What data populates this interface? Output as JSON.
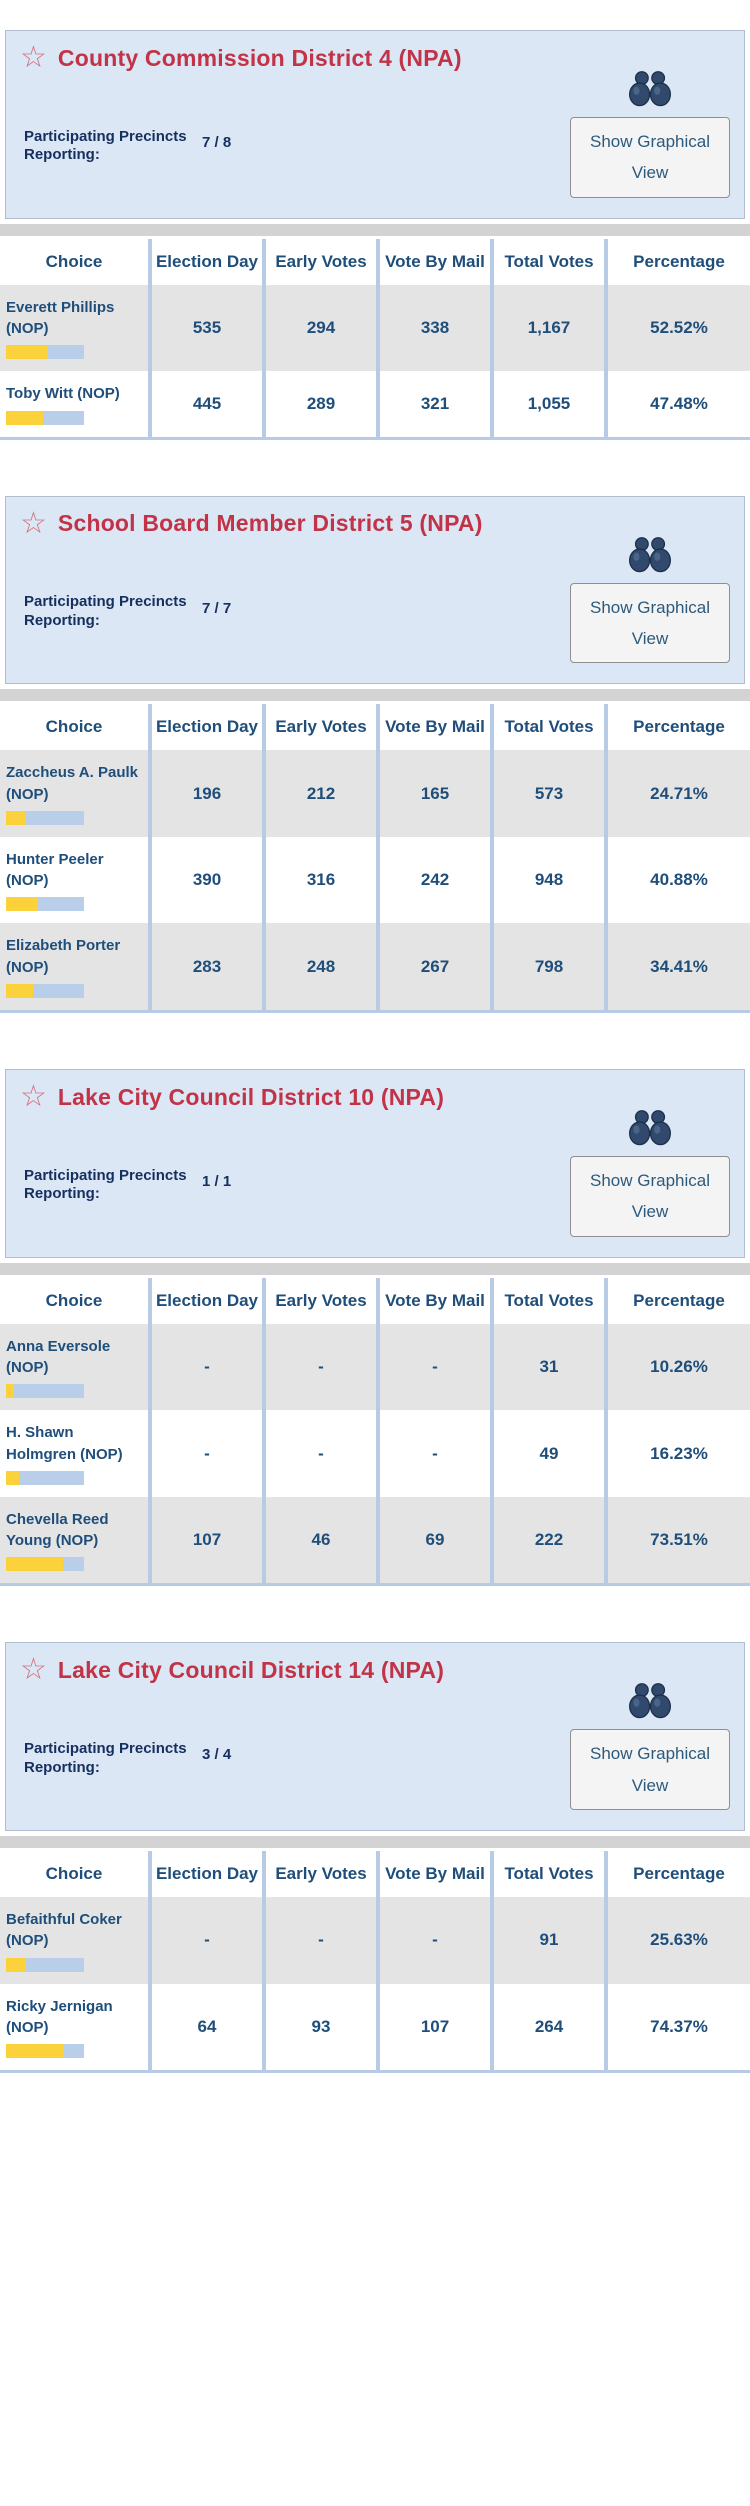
{
  "shared": {
    "precincts_label": "Participating Precincts Reporting:",
    "graphical_view_button": "Show Graphical View",
    "star_icon": "☆",
    "table_headers": [
      "Choice",
      "Election Day",
      "Early Votes",
      "Vote By Mail",
      "Total Votes",
      "Percentage"
    ]
  },
  "colors": {
    "panel_bg": "#dce7f5",
    "panel_border": "#b2bdd0",
    "title_red": "#c23347",
    "star_red": "#d2707e",
    "navy": "#1f4e7a",
    "dark_navy": "#152f5e",
    "strip_gray": "#d3d3d3",
    "row_gray": "#e4e4e4",
    "col_border": "#b7cce4",
    "bar_yellow": "#fbd23c",
    "bar_blue": "#b9cfe9",
    "button_text": "#2c5a7c"
  },
  "contests": [
    {
      "title": "County Commission District 4 (NPA)",
      "precincts_reporting": "7 / 8",
      "rows": [
        {
          "choice": "Everett Phillips (NOP)",
          "election_day": "535",
          "early_votes": "294",
          "vote_by_mail": "338",
          "total_votes": "1,167",
          "percentage": "52.52%",
          "pct": 52.52
        },
        {
          "choice": "Toby Witt (NOP)",
          "election_day": "445",
          "early_votes": "289",
          "vote_by_mail": "321",
          "total_votes": "1,055",
          "percentage": "47.48%",
          "pct": 47.48
        }
      ]
    },
    {
      "title": "School Board Member District 5 (NPA)",
      "precincts_reporting": "7 / 7",
      "rows": [
        {
          "choice": "Zaccheus A. Paulk (NOP)",
          "election_day": "196",
          "early_votes": "212",
          "vote_by_mail": "165",
          "total_votes": "573",
          "percentage": "24.71%",
          "pct": 24.71
        },
        {
          "choice": "Hunter Peeler (NOP)",
          "election_day": "390",
          "early_votes": "316",
          "vote_by_mail": "242",
          "total_votes": "948",
          "percentage": "40.88%",
          "pct": 40.88
        },
        {
          "choice": "Elizabeth Porter (NOP)",
          "election_day": "283",
          "early_votes": "248",
          "vote_by_mail": "267",
          "total_votes": "798",
          "percentage": "34.41%",
          "pct": 34.41
        }
      ]
    },
    {
      "title": "Lake City Council District 10 (NPA)",
      "precincts_reporting": "1 / 1",
      "rows": [
        {
          "choice": "Anna Eversole (NOP)",
          "election_day": "-",
          "early_votes": "-",
          "vote_by_mail": "-",
          "total_votes": "31",
          "percentage": "10.26%",
          "pct": 10.26
        },
        {
          "choice": "H. Shawn Holmgren (NOP)",
          "election_day": "-",
          "early_votes": "-",
          "vote_by_mail": "-",
          "total_votes": "49",
          "percentage": "16.23%",
          "pct": 16.23
        },
        {
          "choice": "Chevella Reed Young (NOP)",
          "election_day": "107",
          "early_votes": "46",
          "vote_by_mail": "69",
          "total_votes": "222",
          "percentage": "73.51%",
          "pct": 73.51
        }
      ]
    },
    {
      "title": "Lake City Council District 14 (NPA)",
      "precincts_reporting": "3 / 4",
      "rows": [
        {
          "choice": "Befaithful Coker (NOP)",
          "election_day": "-",
          "early_votes": "-",
          "vote_by_mail": "-",
          "total_votes": "91",
          "percentage": "25.63%",
          "pct": 25.63
        },
        {
          "choice": "Ricky Jernigan (NOP)",
          "election_day": "64",
          "early_votes": "93",
          "vote_by_mail": "107",
          "total_votes": "264",
          "percentage": "74.37%",
          "pct": 74.37
        }
      ]
    }
  ]
}
